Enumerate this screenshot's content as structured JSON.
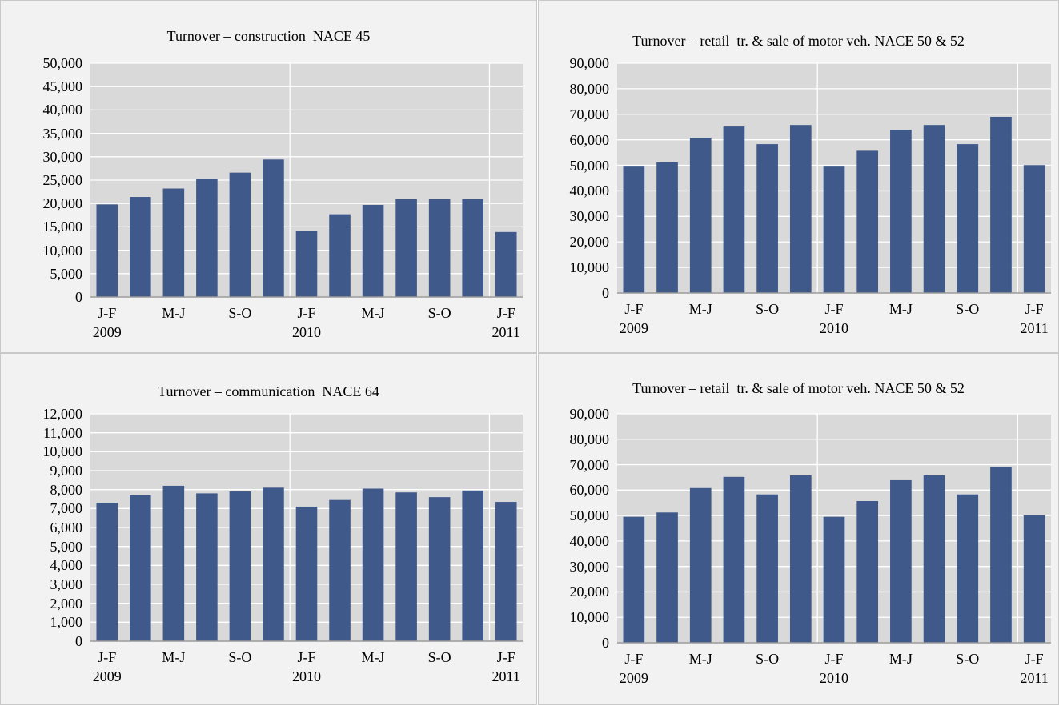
{
  "chart_data": [
    {
      "type": "bar",
      "title": "Turnover – construction  NACE 45",
      "categories": [
        "J-F\n2009",
        null,
        "M-J",
        null,
        "S-O",
        null,
        "J-F\n2010",
        null,
        "M-J",
        null,
        "S-O",
        null,
        "J-F\n2011"
      ],
      "values": [
        19800,
        21400,
        23200,
        25200,
        26600,
        29400,
        14200,
        17700,
        19700,
        21000,
        21000,
        21000,
        13900
      ],
      "color": "#3f5a8a",
      "grid": true,
      "ylim": [
        0,
        50000
      ],
      "yticks": [
        0,
        {
          "value": 5000,
          "label": "5,000"
        },
        {
          "value": 10000,
          "label": "10,000"
        },
        {
          "value": 15000,
          "label": "15,000"
        },
        {
          "value": 20000,
          "label": "20,000"
        },
        {
          "value": 25000,
          "label": "25,000"
        },
        {
          "value": 30000,
          "label": "30,000"
        },
        {
          "value": 35000,
          "label": "35,000"
        },
        {
          "value": 40000,
          "label": "40,000"
        },
        {
          "value": 45000,
          "label": "45,000"
        },
        {
          "value": 50000,
          "label": "50,000"
        }
      ]
    },
    {
      "type": "bar",
      "title": "Turnover – retail  tr. & sale of motor veh. NACE 50 & 52",
      "categories": [
        "J-F\n2009",
        null,
        "M-J",
        null,
        "S-O",
        null,
        "J-F\n2010",
        null,
        "M-J",
        null,
        "S-O",
        null,
        "J-F\n2011"
      ],
      "values": [
        49500,
        51200,
        60800,
        65200,
        58300,
        65800,
        49500,
        55700,
        63900,
        65800,
        58300,
        69000,
        50100
      ],
      "color": "#3f5a8a",
      "grid": true,
      "ylim": [
        0,
        90000
      ],
      "yticks": [
        0,
        {
          "value": 10000,
          "label": "10,000"
        },
        {
          "value": 20000,
          "label": "20,000"
        },
        {
          "value": 30000,
          "label": "30,000"
        },
        {
          "value": 40000,
          "label": "40,000"
        },
        {
          "value": 50000,
          "label": "50,000"
        },
        {
          "value": 60000,
          "label": "60,000"
        },
        {
          "value": 70000,
          "label": "70,000"
        },
        {
          "value": 80000,
          "label": "80,000"
        },
        {
          "value": 90000,
          "label": "90,000"
        }
      ]
    },
    {
      "type": "bar",
      "title": "Turnover – communication  NACE 64",
      "categories": [
        "J-F\n2009",
        null,
        "M-J",
        null,
        "S-O",
        null,
        "J-F\n2010",
        null,
        "M-J",
        null,
        "S-O",
        null,
        "J-F\n2011"
      ],
      "values": [
        7300,
        7700,
        8200,
        7800,
        7900,
        8100,
        7100,
        7450,
        8050,
        7850,
        7600,
        7950,
        7350
      ],
      "color": "#3f5a8a",
      "grid": true,
      "ylim": [
        0,
        12000
      ],
      "yticks": [
        0,
        {
          "value": 1000,
          "label": "1,000"
        },
        {
          "value": 2000,
          "label": "2,000"
        },
        {
          "value": 3000,
          "label": "3,000"
        },
        {
          "value": 4000,
          "label": "4,000"
        },
        {
          "value": 5000,
          "label": "5,000"
        },
        {
          "value": 6000,
          "label": "6,000"
        },
        {
          "value": 7000,
          "label": "7,000"
        },
        {
          "value": 8000,
          "label": "8,000"
        },
        {
          "value": 9000,
          "label": "9,000"
        },
        {
          "value": 10000,
          "label": "10,000"
        },
        {
          "value": 11000,
          "label": "11,000"
        },
        {
          "value": 12000,
          "label": "12,000"
        }
      ]
    },
    {
      "type": "bar",
      "title": "Turnover – retail  tr. & sale of motor veh. NACE 50 & 52",
      "categories": [
        "J-F\n2009",
        null,
        "M-J",
        null,
        "S-O",
        null,
        "J-F\n2010",
        null,
        "M-J",
        null,
        "S-O",
        null,
        "J-F\n2011"
      ],
      "values": [
        49500,
        51200,
        60800,
        65200,
        58300,
        65800,
        49500,
        55700,
        63900,
        65800,
        58300,
        69000,
        50100
      ],
      "color": "#3f5a8a",
      "grid": true,
      "ylim": [
        0,
        90000
      ],
      "yticks": [
        0,
        {
          "value": 10000,
          "label": "10,000"
        },
        {
          "value": 20000,
          "label": "20,000"
        },
        {
          "value": 30000,
          "label": "30,000"
        },
        {
          "value": 40000,
          "label": "40,000"
        },
        {
          "value": 50000,
          "label": "50,000"
        },
        {
          "value": 60000,
          "label": "60,000"
        },
        {
          "value": 70000,
          "label": "70,000"
        },
        {
          "value": 80000,
          "label": "80,000"
        },
        {
          "value": 90000,
          "label": "90,000"
        }
      ]
    }
  ]
}
